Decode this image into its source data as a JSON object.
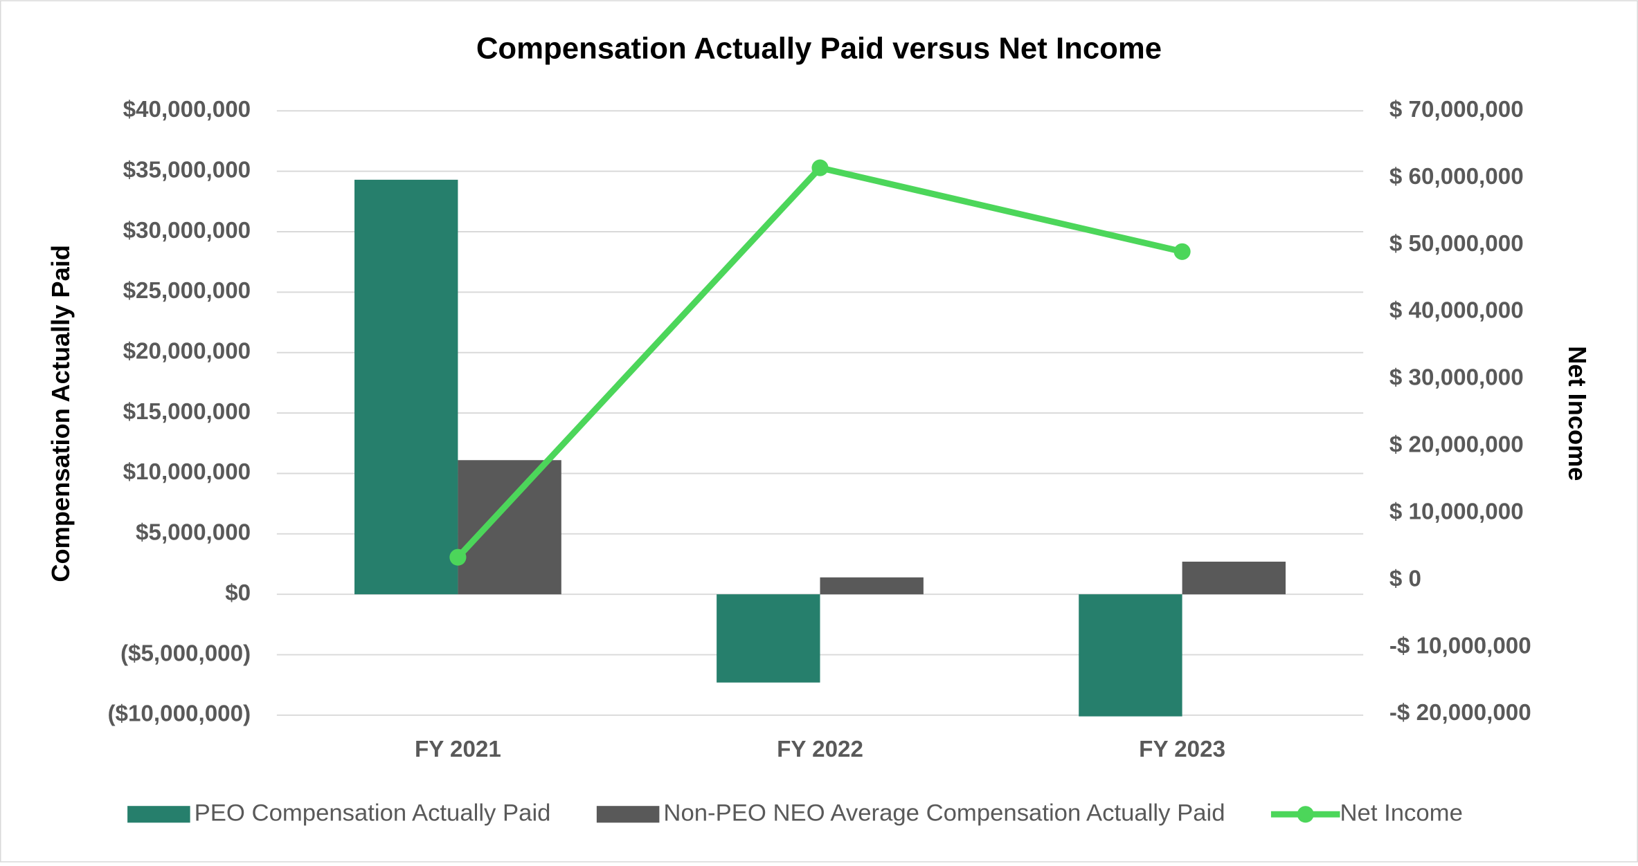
{
  "chart_data": {
    "type": "bar",
    "title": "Compensation Actually Paid versus Net Income",
    "y_label": "Compensation Actually Paid",
    "y2_label": "Net Income",
    "categories": [
      "FY 2021",
      "FY 2022",
      "FY 2023"
    ],
    "series": [
      {
        "name": "PEO Compensation Actually Paid",
        "color": "#267f6c",
        "type": "bar",
        "values": [
          34300000,
          -7300000,
          -10100000
        ]
      },
      {
        "name": "Non-PEO NEO Average Compensation Actually Paid",
        "color": "#595959",
        "type": "bar",
        "values": [
          11100000,
          1400000,
          2700000
        ]
      },
      {
        "name": "Net Income",
        "color": "#4cd65a",
        "type": "line",
        "axis": "y2",
        "values": [
          3400000,
          61500000,
          49000000
        ]
      }
    ],
    "ylim": [
      -10000000,
      40000000
    ],
    "yticks": [
      {
        "value": -10000000,
        "label": "($10,000,000)"
      },
      {
        "value": -5000000,
        "label": "($5,000,000)"
      },
      {
        "value": 0,
        "label": "$0"
      },
      {
        "value": 5000000,
        "label": "$5,000,000"
      },
      {
        "value": 10000000,
        "label": "$10,000,000"
      },
      {
        "value": 15000000,
        "label": "$15,000,000"
      },
      {
        "value": 20000000,
        "label": "$20,000,000"
      },
      {
        "value": 25000000,
        "label": "$25,000,000"
      },
      {
        "value": 30000000,
        "label": "$30,000,000"
      },
      {
        "value": 35000000,
        "label": "$35,000,000"
      },
      {
        "value": 40000000,
        "label": "$40,000,000"
      }
    ],
    "y2lim": [
      -20000000,
      70000000
    ],
    "y2ticks": [
      {
        "value": -20000000,
        "label": "-$ 20,000,000"
      },
      {
        "value": -10000000,
        "label": "-$ 10,000,000"
      },
      {
        "value": 0,
        "label": "$ 0"
      },
      {
        "value": 10000000,
        "label": "$ 10,000,000"
      },
      {
        "value": 20000000,
        "label": "$ 20,000,000"
      },
      {
        "value": 30000000,
        "label": "$ 30,000,000"
      },
      {
        "value": 40000000,
        "label": "$ 40,000,000"
      },
      {
        "value": 50000000,
        "label": "$ 50,000,000"
      },
      {
        "value": 60000000,
        "label": "$ 60,000,000"
      },
      {
        "value": 70000000,
        "label": "$ 70,000,000"
      }
    ],
    "grid": true,
    "legend": "bottom"
  }
}
